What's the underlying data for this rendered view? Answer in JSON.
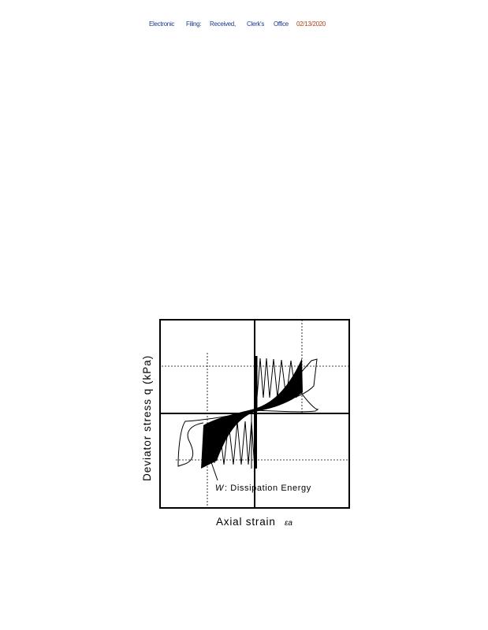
{
  "header": {
    "items": [
      "Electronic",
      "Filing:",
      "Received,",
      "Clerk's",
      "Office",
      "02/13/2020"
    ],
    "color": "#1b3a8c",
    "date_color": "#b3421a"
  },
  "figure": {
    "y_label": "Deviator stress  q (kPa)",
    "x_label": "Axial strain",
    "x_symbol": "εa",
    "annotation_symbol": "W",
    "annotation_text": ": Dissipation Energy"
  }
}
